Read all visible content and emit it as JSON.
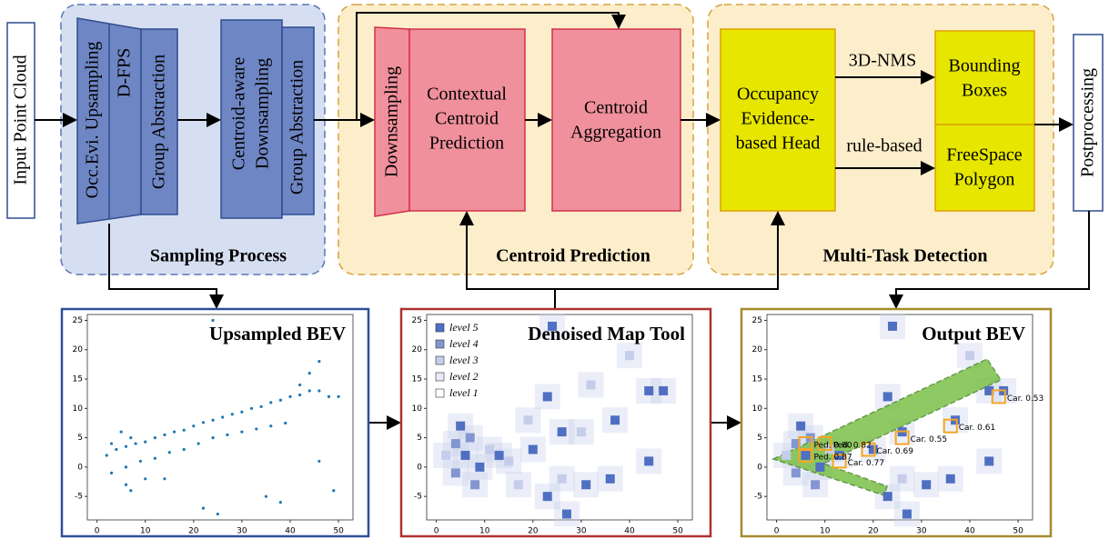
{
  "input": "Input Point Cloud",
  "sampling": {
    "title": "Sampling Process",
    "upsampling": "Occ.Evi. Upsampling",
    "dfps": "D-FPS",
    "group1": "Group Abstraction",
    "centroid_down": [
      "Centroid-aware",
      "Downsampling"
    ],
    "group2": "Group Abstraction"
  },
  "centroid": {
    "title": "Centroid Prediction",
    "downsampling": "Downsampling",
    "contextual": [
      "Contextual",
      "Centroid",
      "Prediction"
    ],
    "aggregation": [
      "Centroid",
      "Aggregation"
    ]
  },
  "detection": {
    "title": "Multi-Task Detection",
    "head": [
      "Occupancy",
      "Evidence-",
      "based Head"
    ],
    "nms": "3D-NMS",
    "rule": "rule-based",
    "boxes": [
      "Bounding",
      "Boxes"
    ],
    "freespace": [
      "FreeSpace",
      "Polygon"
    ]
  },
  "postprocessing": "Postprocessing",
  "plots": [
    {
      "title": "Upsampled BEV",
      "color": "#1f77b4",
      "xlim": [
        -2,
        53
      ],
      "ylim": [
        -9,
        26
      ],
      "xticks": [
        0,
        10,
        20,
        30,
        40,
        50
      ],
      "yticks": [
        -5,
        0,
        5,
        10,
        15,
        20,
        25
      ],
      "points": [
        [
          4,
          3
        ],
        [
          6,
          3.5
        ],
        [
          8,
          4
        ],
        [
          10,
          4.3
        ],
        [
          12,
          5
        ],
        [
          14,
          5.5
        ],
        [
          16,
          6
        ],
        [
          18,
          6.3
        ],
        [
          20,
          7
        ],
        [
          22,
          7.6
        ],
        [
          24,
          8
        ],
        [
          26,
          8.5
        ],
        [
          28,
          9
        ],
        [
          30,
          9.4
        ],
        [
          32,
          10
        ],
        [
          34,
          10.3
        ],
        [
          36,
          11
        ],
        [
          38,
          11.4
        ],
        [
          40,
          12
        ],
        [
          42,
          12.3
        ],
        [
          44,
          13
        ],
        [
          46,
          13
        ],
        [
          48,
          12
        ],
        [
          50,
          12
        ],
        [
          3,
          -1
        ],
        [
          6,
          0
        ],
        [
          9,
          1
        ],
        [
          12,
          1.5
        ],
        [
          15,
          2.5
        ],
        [
          18,
          3
        ],
        [
          21,
          4
        ],
        [
          24,
          5
        ],
        [
          27,
          5.5
        ],
        [
          30,
          6
        ],
        [
          33,
          6.5
        ],
        [
          36,
          7
        ],
        [
          39,
          7.5
        ],
        [
          2,
          2
        ],
        [
          3,
          4
        ],
        [
          5,
          6
        ],
        [
          7,
          5
        ],
        [
          6,
          -3
        ],
        [
          7,
          -4
        ],
        [
          10,
          -2
        ],
        [
          14,
          -2
        ],
        [
          22,
          -7
        ],
        [
          25,
          -8
        ],
        [
          35,
          -5
        ],
        [
          38,
          -6
        ],
        [
          46,
          1
        ],
        [
          49,
          -4
        ],
        [
          42,
          14
        ],
        [
          44,
          16
        ],
        [
          46,
          18
        ],
        [
          24,
          25
        ]
      ]
    },
    {
      "title": "Denoised Map Tool",
      "xlim": [
        -2,
        53
      ],
      "ylim": [
        -9,
        26
      ],
      "xticks": [
        0,
        10,
        20,
        30,
        40,
        50
      ],
      "yticks": [
        -5,
        0,
        5,
        10,
        15,
        20,
        25
      ],
      "levels": [
        {
          "label": "level 5",
          "color": "#4f6fc2"
        },
        {
          "label": "level 4",
          "color": "#8496d1"
        },
        {
          "label": "level 3",
          "color": "#c5cdeb"
        },
        {
          "label": "level 2",
          "color": "#e6e9f6"
        },
        {
          "label": "level 1",
          "color": "#ffffff"
        }
      ],
      "cells": [
        [
          2,
          2,
          3
        ],
        [
          4,
          4,
          4
        ],
        [
          5,
          7,
          5
        ],
        [
          6,
          2,
          5
        ],
        [
          7,
          5,
          4
        ],
        [
          4,
          -1,
          4
        ],
        [
          9,
          0,
          5
        ],
        [
          11,
          3,
          3
        ],
        [
          13,
          2,
          5
        ],
        [
          8,
          -3,
          4
        ],
        [
          15,
          1,
          3
        ],
        [
          20,
          3,
          5
        ],
        [
          23,
          12,
          5
        ],
        [
          26,
          6,
          5
        ],
        [
          30,
          6,
          3
        ],
        [
          32,
          14,
          3
        ],
        [
          37,
          8,
          5
        ],
        [
          40,
          19,
          3
        ],
        [
          44,
          13,
          5
        ],
        [
          47,
          13,
          5
        ],
        [
          44,
          1,
          5
        ],
        [
          36,
          -2,
          5
        ],
        [
          31,
          -3,
          5
        ],
        [
          26,
          -2,
          3
        ],
        [
          23,
          -5,
          5
        ],
        [
          27,
          -8,
          5
        ],
        [
          24,
          24,
          5
        ],
        [
          17,
          -3,
          3
        ],
        [
          19,
          8,
          3
        ]
      ]
    },
    {
      "title": "Output BEV",
      "xlim": [
        -2,
        53
      ],
      "ylim": [
        -9,
        26
      ],
      "xticks": [
        0,
        10,
        20,
        30,
        40,
        50
      ],
      "yticks": [
        -5,
        0,
        5,
        10,
        15,
        20,
        25
      ],
      "cells": [
        [
          2,
          2,
          3
        ],
        [
          4,
          4,
          4
        ],
        [
          5,
          7,
          5
        ],
        [
          6,
          2,
          5
        ],
        [
          7,
          5,
          4
        ],
        [
          4,
          -1,
          4
        ],
        [
          9,
          0,
          5
        ],
        [
          11,
          3,
          3
        ],
        [
          13,
          2,
          5
        ],
        [
          8,
          -3,
          4
        ],
        [
          20,
          3,
          5
        ],
        [
          23,
          12,
          5
        ],
        [
          26,
          6,
          5
        ],
        [
          37,
          8,
          5
        ],
        [
          40,
          19,
          3
        ],
        [
          44,
          13,
          5
        ],
        [
          47,
          13,
          5
        ],
        [
          44,
          1,
          5
        ],
        [
          36,
          -2,
          5
        ],
        [
          31,
          -3,
          5
        ],
        [
          26,
          -2,
          3
        ],
        [
          23,
          -5,
          5
        ],
        [
          27,
          -8,
          5
        ],
        [
          24,
          24,
          5
        ]
      ],
      "detections": [
        {
          "label": "Car. 0.53",
          "x": 46,
          "y": 12
        },
        {
          "label": "Car. 0.61",
          "x": 36,
          "y": 7
        },
        {
          "label": "Car. 0.55",
          "x": 26,
          "y": 5
        },
        {
          "label": "Car. 0.69",
          "x": 19,
          "y": 3
        },
        {
          "label": "Car. 0.77",
          "x": 13,
          "y": 1
        },
        {
          "label": "Ped. 0.82",
          "x": 10,
          "y": 4
        },
        {
          "label": "Ped. 0.80",
          "x": 6,
          "y": 4
        },
        {
          "label": "Ped. 0.87",
          "x": 6,
          "y": 2
        }
      ]
    }
  ]
}
